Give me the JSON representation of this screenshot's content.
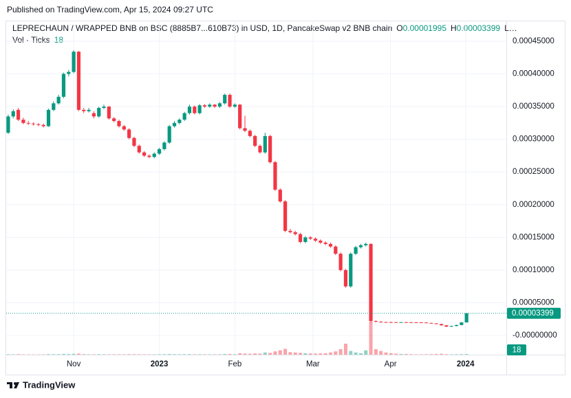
{
  "published": "Published on TradingView.com, Apr 15, 2024 09:27 UTC",
  "footer": "TradingView",
  "chart_data": {
    "type": "candlestick",
    "title": "LEPRECHAUN / WRAPPED BNB on BSC (8885B7...610B73) in USD, 1D, PancakeSwap v2 BNB chain",
    "legend_open": "O",
    "legend_high": "H",
    "legend_low": "L…",
    "volume_label": "Vol · Ticks",
    "up_color": "#089981",
    "down_color": "#f23645",
    "ylim": [
      -2.94e-05,
      0.0004815
    ],
    "yticks": [
      {
        "value": 0.00045,
        "label": "0.00045000"
      },
      {
        "value": 0.0004,
        "label": "0.00040000"
      },
      {
        "value": 0.00035,
        "label": "0.00035000"
      },
      {
        "value": 0.0003,
        "label": "0.00030000"
      },
      {
        "value": 0.00025,
        "label": "0.00025000"
      },
      {
        "value": 0.0002,
        "label": "0.00020000"
      },
      {
        "value": 0.00015,
        "label": "0.00015000"
      },
      {
        "value": 0.0001,
        "label": "0.00010000"
      },
      {
        "value": 5e-05,
        "label": "0.00005000"
      },
      {
        "value": 0,
        "label": "-0.00000000"
      }
    ],
    "xlim": [
      -0.4,
      98.9
    ],
    "xticks": [
      {
        "value": 13.0,
        "label": "Nov"
      },
      {
        "value": 30.0,
        "label": "2023"
      },
      {
        "value": 45.0,
        "label": "Feb"
      },
      {
        "value": 60.5,
        "label": "Mar"
      },
      {
        "value": 75.9,
        "label": "Apr"
      },
      {
        "value": 90.8,
        "label": "2024"
      }
    ],
    "grid": true,
    "ohlc": [
      [
        0.00031,
        0.000338,
        0.000308,
        0.000335
      ],
      [
        0.000335,
        0.000346,
        0.000332,
        0.000343
      ],
      [
        0.000345,
        0.000348,
        0.000328,
        0.00033
      ],
      [
        0.00033,
        0.000333,
        0.000323,
        0.000325
      ],
      [
        0.000325,
        0.000328,
        0.000322,
        0.000324
      ],
      [
        0.000324,
        0.000326,
        0.000321,
        0.000323
      ],
      [
        0.000323,
        0.000325,
        0.00032,
        0.000322
      ],
      [
        0.000322,
        0.000324,
        0.000318,
        0.00032
      ],
      [
        0.00032,
        0.000347,
        0.000319,
        0.000345
      ],
      [
        0.000345,
        0.000358,
        0.000343,
        0.000355
      ],
      [
        0.000355,
        0.000368,
        0.000353,
        0.000365
      ],
      [
        0.000365,
        0.000402,
        0.000363,
        0.0004
      ],
      [
        0.0004,
        0.000406,
        0.000396,
        0.000403
      ],
      [
        0.000403,
        0.000436,
        0.000401,
        0.000434
      ],
      [
        0.000434,
        0.000435,
        0.000343,
        0.000345
      ],
      [
        0.000345,
        0.000348,
        0.00034,
        0.000343
      ],
      [
        0.000343,
        0.000348,
        0.000341,
        0.000345
      ],
      [
        0.00034,
        0.000343,
        0.000332,
        0.000335
      ],
      [
        0.000335,
        0.00035,
        0.000333,
        0.000348
      ],
      [
        0.000348,
        0.000353,
        0.000346,
        0.00035
      ],
      [
        0.00035,
        0.000351,
        0.00033,
        0.000332
      ],
      [
        0.000332,
        0.000334,
        0.000326,
        0.000328
      ],
      [
        0.000328,
        0.00033,
        0.000318,
        0.00032
      ],
      [
        0.00032,
        0.000322,
        0.000313,
        0.000315
      ],
      [
        0.000315,
        0.000317,
        0.0003,
        0.000302
      ],
      [
        0.000302,
        0.000304,
        0.000288,
        0.00029
      ],
      [
        0.00029,
        0.000292,
        0.000278,
        0.00028
      ],
      [
        0.00028,
        0.000282,
        0.000273,
        0.000275
      ],
      [
        0.000275,
        0.000277,
        0.000271,
        0.000273
      ],
      [
        0.000273,
        0.00028,
        0.000271,
        0.000278
      ],
      [
        0.000278,
        0.000287,
        0.000276,
        0.000285
      ],
      [
        0.000285,
        0.000297,
        0.000283,
        0.000295
      ],
      [
        0.000295,
        0.000322,
        0.000293,
        0.00032
      ],
      [
        0.00032,
        0.000328,
        0.000318,
        0.000325
      ],
      [
        0.000325,
        0.000332,
        0.000323,
        0.00033
      ],
      [
        0.00033,
        0.000342,
        0.000328,
        0.00034
      ],
      [
        0.00034,
        0.000353,
        0.000338,
        0.00035
      ],
      [
        0.00035,
        0.000352,
        0.000338,
        0.00034
      ],
      [
        0.00034,
        0.000354,
        0.000338,
        0.000352
      ],
      [
        0.000352,
        0.000354,
        0.000348,
        0.00035
      ],
      [
        0.00035,
        0.000355,
        0.000348,
        0.000353
      ],
      [
        0.000353,
        0.000354,
        0.000348,
        0.00035
      ],
      [
        0.00035,
        0.000357,
        0.000348,
        0.000355
      ],
      [
        0.000355,
        0.00037,
        0.000353,
        0.000368
      ],
      [
        0.000368,
        0.00037,
        0.000348,
        0.00035
      ],
      [
        0.00035,
        0.000355,
        0.000348,
        0.000353
      ],
      [
        0.000353,
        0.000354,
        0.000315,
        0.000317
      ],
      [
        0.000317,
        0.000336,
        0.000311,
        0.000313
      ],
      [
        0.000313,
        0.000315,
        0.000303,
        0.000305
      ],
      [
        0.000305,
        0.000307,
        0.000288,
        0.00029
      ],
      [
        0.00029,
        0.000292,
        0.000278,
        0.00028
      ],
      [
        0.00028,
        0.00031,
        0.000278,
        0.000305
      ],
      [
        0.000305,
        0.000307,
        0.000263,
        0.000265
      ],
      [
        0.000265,
        0.000267,
        0.000221,
        0.000223
      ],
      [
        0.000223,
        0.000225,
        0.000203,
        0.000205
      ],
      [
        0.000205,
        0.000207,
        0.000158,
        0.00016
      ],
      [
        0.00016,
        0.000163,
        0.000156,
        0.000158
      ],
      [
        0.000158,
        0.00016,
        0.000153,
        0.000155
      ],
      [
        0.000155,
        0.000157,
        0.000141,
        0.000143
      ],
      [
        0.000143,
        0.000152,
        0.000141,
        0.00015
      ],
      [
        0.00015,
        0.000152,
        0.000146,
        0.000148
      ],
      [
        0.000148,
        0.00015,
        0.000143,
        0.000145
      ],
      [
        0.000145,
        0.000147,
        0.00014,
        0.000142
      ],
      [
        0.000142,
        0.000144,
        0.000138,
        0.00014
      ],
      [
        0.00014,
        0.000142,
        0.000134,
        0.000136
      ],
      [
        0.000136,
        0.000138,
        0.000123,
        0.000125
      ],
      [
        0.000125,
        0.000127,
        9.8e-05,
        0.0001
      ],
      [
        0.0001,
        0.000102,
        7.3e-05,
        7.5e-05
      ],
      [
        7.5e-05,
        0.000127,
        7.3e-05,
        0.000125
      ],
      [
        0.000125,
        0.000137,
        0.000123,
        0.000135
      ],
      [
        0.000135,
        0.00014,
        0.000133,
        0.000138
      ],
      [
        0.000138,
        0.000142,
        0.000136,
        0.00014
      ],
      [
        0.00014,
        0.000141,
        2e-05,
        2.2e-05
      ],
      [
        2.2e-05,
        2.3e-05,
        2e-05,
        2.1e-05
      ],
      [
        2.1e-05,
        2.2e-05,
        2e-05,
        2.05e-05
      ],
      [
        2.05e-05,
        2.1e-05,
        2e-05,
        2.04e-05
      ],
      [
        2.04e-05,
        2.1e-05,
        2e-05,
        2.03e-05
      ],
      [
        2.03e-05,
        2.08e-05,
        1.98e-05,
        2.02e-05
      ],
      [
        2.02e-05,
        2.06e-05,
        1.98e-05,
        2.03e-05
      ],
      [
        2.03e-05,
        2.07e-05,
        1.99e-05,
        2.02e-05
      ],
      [
        2.02e-05,
        2.05e-05,
        1.97e-05,
        2.01e-05
      ],
      [
        2.01e-05,
        2.05e-05,
        1.96e-05,
        2e-05
      ],
      [
        2e-05,
        2.04e-05,
        1.95e-05,
        1.98e-05
      ],
      [
        1.98e-05,
        2.02e-05,
        1.9e-05,
        1.92e-05
      ],
      [
        1.92e-05,
        1.95e-05,
        1.8e-05,
        1.85e-05
      ],
      [
        1.85e-05,
        1.88e-05,
        1.7e-05,
        1.75e-05
      ],
      [
        1.75e-05,
        1.78e-05,
        1.5e-05,
        1.55e-05
      ],
      [
        1.55e-05,
        1.6e-05,
        1.3e-05,
        1.35e-05
      ],
      [
        1.35e-05,
        1.5e-05,
        1.3e-05,
        1.45e-05
      ],
      [
        1.45e-05,
        1.65e-05,
        1.4e-05,
        1.6e-05
      ],
      [
        1.6e-05,
        2.05e-05,
        1.55e-05,
        1.995e-05
      ],
      [
        1.995e-05,
        3.399e-05,
        1.99e-05,
        3.399e-05
      ]
    ],
    "volume": [
      12,
      10,
      14,
      9,
      8,
      8,
      7,
      9,
      15,
      14,
      16,
      22,
      18,
      25,
      30,
      15,
      12,
      10,
      14,
      12,
      11,
      10,
      12,
      10,
      14,
      12,
      11,
      10,
      9,
      10,
      12,
      14,
      18,
      14,
      12,
      14,
      16,
      12,
      13,
      10,
      11,
      10,
      12,
      20,
      22,
      14,
      40,
      30,
      25,
      35,
      30,
      60,
      50,
      90,
      120,
      160,
      70,
      60,
      50,
      40,
      35,
      30,
      35,
      40,
      60,
      90,
      150,
      300,
      100,
      60,
      40,
      120,
      900,
      150,
      100,
      60,
      40,
      30,
      20,
      20,
      15,
      10,
      10,
      12,
      15,
      20,
      25,
      15,
      10,
      12,
      15,
      18
    ]
  }
}
